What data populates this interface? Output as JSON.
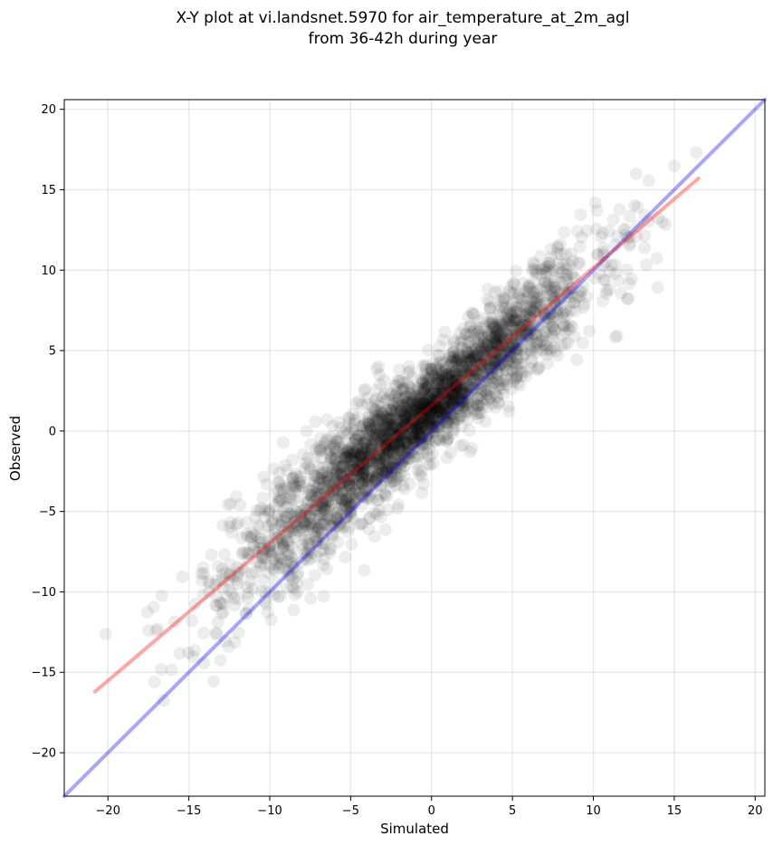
{
  "chart_data": {
    "type": "scatter",
    "title_line1": "X-Y plot at vi.landsnet.5970 for air_temperature_at_2m_agl",
    "title_line2": "from 36-42h during year",
    "xlabel": "Simulated",
    "ylabel": "Observed",
    "xlim": [
      -22.7,
      20.6
    ],
    "ylim": [
      -22.7,
      20.6
    ],
    "x_ticks": [
      -20,
      -15,
      -10,
      -5,
      0,
      5,
      10,
      15,
      20
    ],
    "y_ticks": [
      -20,
      -15,
      -10,
      -5,
      0,
      5,
      10,
      15,
      20
    ],
    "x_tick_labels": [
      "−20",
      "−15",
      "−10",
      "−5",
      "0",
      "5",
      "10",
      "15",
      "20"
    ],
    "y_tick_labels": [
      "−20",
      "−15",
      "−10",
      "−5",
      "0",
      "5",
      "10",
      "15",
      "20"
    ],
    "grid": true,
    "point_color": "#000000",
    "point_alpha": 0.07,
    "cloud": {
      "x_range": [
        -20.8,
        16.5
      ],
      "x_center": -1.0,
      "x_spread": 5.5,
      "regression_slope": 0.85,
      "regression_intercept": 1.5,
      "residual_spread": 2.0,
      "approx_points": 3000
    },
    "reference_lines": [
      {
        "kind": "1:1",
        "color": "#0000ff",
        "alpha": 0.35,
        "from": [
          -22.7,
          -22.7
        ],
        "to": [
          20.6,
          20.6
        ]
      },
      {
        "kind": "fit",
        "color": "#ff0000",
        "alpha": 0.35,
        "from": [
          -20.8,
          -16.2
        ],
        "to": [
          16.5,
          15.7
        ]
      }
    ]
  }
}
